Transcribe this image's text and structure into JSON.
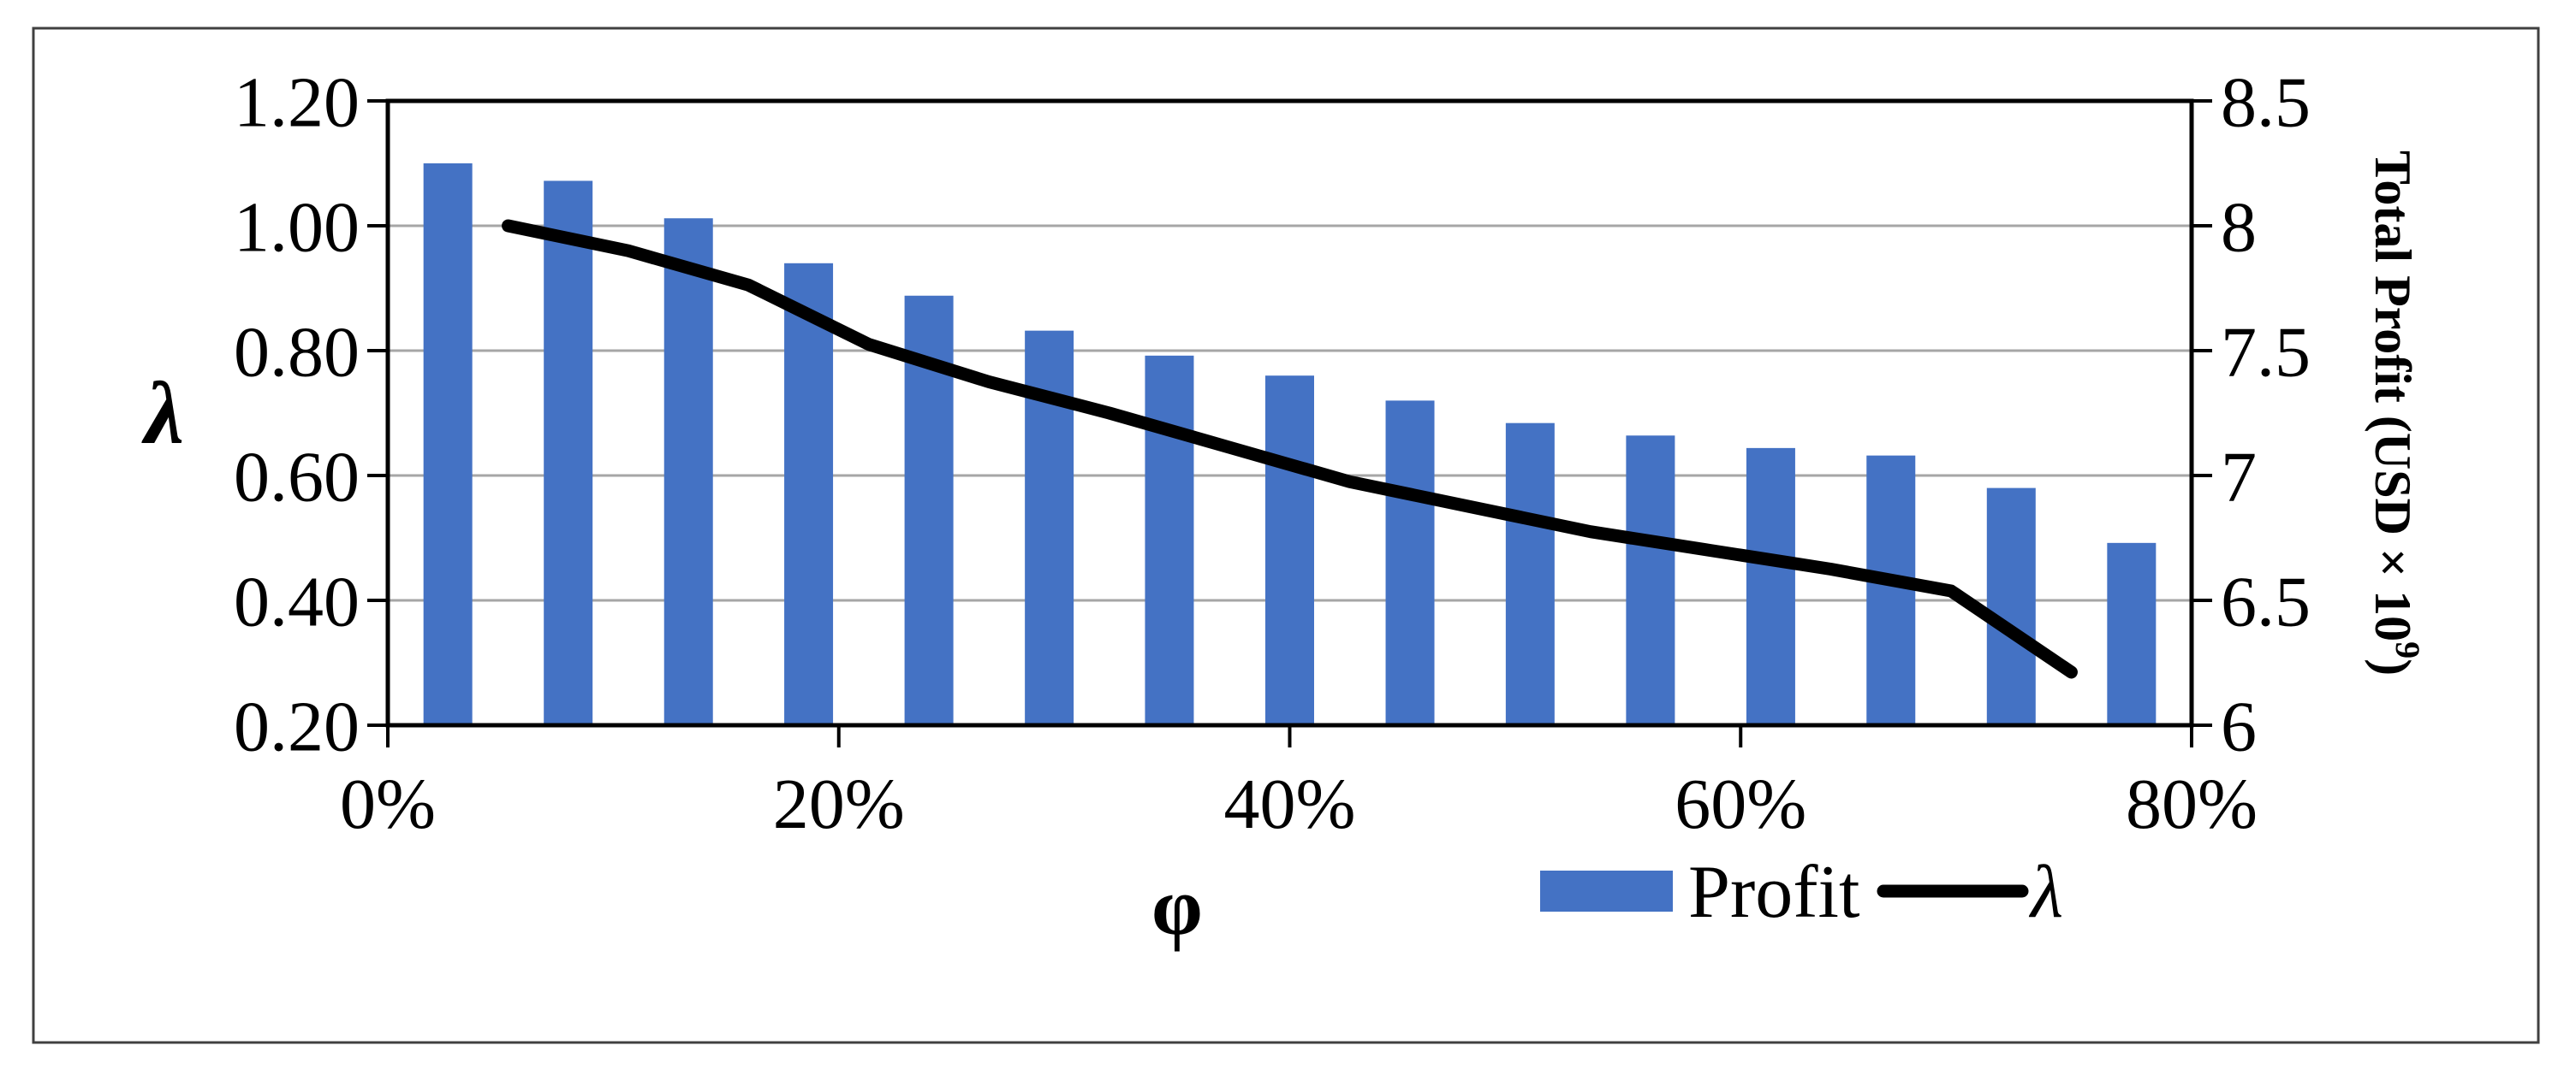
{
  "chart_data": {
    "type": "combo",
    "title": "",
    "x_axis": {
      "label": "φ",
      "tick_labels": [
        "0%",
        "20%",
        "40%",
        "60%",
        "80%"
      ],
      "range_percent": [
        0,
        80
      ]
    },
    "left_axis": {
      "label": "λ",
      "tick_labels": [
        "1.20",
        "1.00",
        "0.80",
        "0.60",
        "0.40",
        "0.20"
      ],
      "range": [
        0.2,
        1.2
      ]
    },
    "right_axis": {
      "label": "Total Profit (USD × 10⁹)",
      "label_parts": [
        "Total Profit (USD × 10",
        "9",
        ")"
      ],
      "tick_labels": [
        "8.5",
        "8",
        "7.5",
        "7",
        "6.5",
        "6"
      ],
      "range": [
        6,
        8.5
      ]
    },
    "grid": "horizontal",
    "series": [
      {
        "name": "Profit",
        "type": "bar",
        "axis": "right",
        "color": "#4472C4",
        "x_fraction": [
          0.0333,
          0.1,
          0.1667,
          0.2333,
          0.3,
          0.3667,
          0.4333,
          0.5,
          0.5667,
          0.6333,
          0.7,
          0.7667,
          0.8333,
          0.9,
          0.9667
        ],
        "values": [
          8.25,
          8.18,
          8.03,
          7.85,
          7.72,
          7.58,
          7.48,
          7.4,
          7.3,
          7.21,
          7.16,
          7.11,
          7.08,
          6.95,
          6.73
        ]
      },
      {
        "name": "λ",
        "type": "line",
        "axis": "left",
        "color": "#000000",
        "x_fraction": [
          0.0667,
          0.1333,
          0.2,
          0.2667,
          0.3333,
          0.4,
          0.4667,
          0.5333,
          0.6,
          0.6667,
          0.7333,
          0.8,
          0.8667,
          0.9333
        ],
        "values": [
          1.0,
          0.96,
          0.905,
          0.81,
          0.75,
          0.7,
          0.645,
          0.59,
          0.55,
          0.51,
          0.48,
          0.45,
          0.415,
          0.285
        ]
      }
    ],
    "legend": {
      "position": "bottom-right",
      "entries": [
        {
          "label": "Profit",
          "marker": "bar-swatch",
          "color": "#4472C4"
        },
        {
          "label": "λ",
          "marker": "line",
          "color": "#000000"
        }
      ]
    },
    "colors": {
      "bar": "#4472C4",
      "line": "#000000",
      "gridline": "#A6A6A6",
      "axis": "#000000",
      "frame": "#404040",
      "background": "#FFFFFF"
    }
  }
}
